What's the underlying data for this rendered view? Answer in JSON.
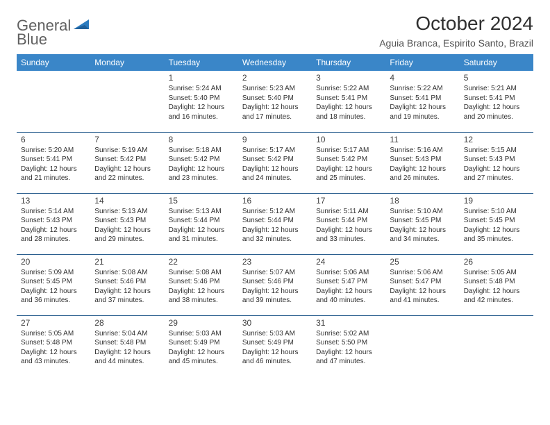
{
  "logo": {
    "part1": "General",
    "part2": "Blue"
  },
  "title": "October 2024",
  "location": "Aguia Branca, Espirito Santo, Brazil",
  "colors": {
    "header_bg": "#3a86c8",
    "header_fg": "#ffffff",
    "row_border": "#2b5f8f",
    "logo_gray": "#606060",
    "logo_blue": "#2b7bbf",
    "text": "#303030"
  },
  "weekdays": [
    "Sunday",
    "Monday",
    "Tuesday",
    "Wednesday",
    "Thursday",
    "Friday",
    "Saturday"
  ],
  "weeks": [
    [
      null,
      null,
      {
        "n": "1",
        "sr": "Sunrise: 5:24 AM",
        "ss": "Sunset: 5:40 PM",
        "d1": "Daylight: 12 hours",
        "d2": "and 16 minutes."
      },
      {
        "n": "2",
        "sr": "Sunrise: 5:23 AM",
        "ss": "Sunset: 5:40 PM",
        "d1": "Daylight: 12 hours",
        "d2": "and 17 minutes."
      },
      {
        "n": "3",
        "sr": "Sunrise: 5:22 AM",
        "ss": "Sunset: 5:41 PM",
        "d1": "Daylight: 12 hours",
        "d2": "and 18 minutes."
      },
      {
        "n": "4",
        "sr": "Sunrise: 5:22 AM",
        "ss": "Sunset: 5:41 PM",
        "d1": "Daylight: 12 hours",
        "d2": "and 19 minutes."
      },
      {
        "n": "5",
        "sr": "Sunrise: 5:21 AM",
        "ss": "Sunset: 5:41 PM",
        "d1": "Daylight: 12 hours",
        "d2": "and 20 minutes."
      }
    ],
    [
      {
        "n": "6",
        "sr": "Sunrise: 5:20 AM",
        "ss": "Sunset: 5:41 PM",
        "d1": "Daylight: 12 hours",
        "d2": "and 21 minutes."
      },
      {
        "n": "7",
        "sr": "Sunrise: 5:19 AM",
        "ss": "Sunset: 5:42 PM",
        "d1": "Daylight: 12 hours",
        "d2": "and 22 minutes."
      },
      {
        "n": "8",
        "sr": "Sunrise: 5:18 AM",
        "ss": "Sunset: 5:42 PM",
        "d1": "Daylight: 12 hours",
        "d2": "and 23 minutes."
      },
      {
        "n": "9",
        "sr": "Sunrise: 5:17 AM",
        "ss": "Sunset: 5:42 PM",
        "d1": "Daylight: 12 hours",
        "d2": "and 24 minutes."
      },
      {
        "n": "10",
        "sr": "Sunrise: 5:17 AM",
        "ss": "Sunset: 5:42 PM",
        "d1": "Daylight: 12 hours",
        "d2": "and 25 minutes."
      },
      {
        "n": "11",
        "sr": "Sunrise: 5:16 AM",
        "ss": "Sunset: 5:43 PM",
        "d1": "Daylight: 12 hours",
        "d2": "and 26 minutes."
      },
      {
        "n": "12",
        "sr": "Sunrise: 5:15 AM",
        "ss": "Sunset: 5:43 PM",
        "d1": "Daylight: 12 hours",
        "d2": "and 27 minutes."
      }
    ],
    [
      {
        "n": "13",
        "sr": "Sunrise: 5:14 AM",
        "ss": "Sunset: 5:43 PM",
        "d1": "Daylight: 12 hours",
        "d2": "and 28 minutes."
      },
      {
        "n": "14",
        "sr": "Sunrise: 5:13 AM",
        "ss": "Sunset: 5:43 PM",
        "d1": "Daylight: 12 hours",
        "d2": "and 29 minutes."
      },
      {
        "n": "15",
        "sr": "Sunrise: 5:13 AM",
        "ss": "Sunset: 5:44 PM",
        "d1": "Daylight: 12 hours",
        "d2": "and 31 minutes."
      },
      {
        "n": "16",
        "sr": "Sunrise: 5:12 AM",
        "ss": "Sunset: 5:44 PM",
        "d1": "Daylight: 12 hours",
        "d2": "and 32 minutes."
      },
      {
        "n": "17",
        "sr": "Sunrise: 5:11 AM",
        "ss": "Sunset: 5:44 PM",
        "d1": "Daylight: 12 hours",
        "d2": "and 33 minutes."
      },
      {
        "n": "18",
        "sr": "Sunrise: 5:10 AM",
        "ss": "Sunset: 5:45 PM",
        "d1": "Daylight: 12 hours",
        "d2": "and 34 minutes."
      },
      {
        "n": "19",
        "sr": "Sunrise: 5:10 AM",
        "ss": "Sunset: 5:45 PM",
        "d1": "Daylight: 12 hours",
        "d2": "and 35 minutes."
      }
    ],
    [
      {
        "n": "20",
        "sr": "Sunrise: 5:09 AM",
        "ss": "Sunset: 5:45 PM",
        "d1": "Daylight: 12 hours",
        "d2": "and 36 minutes."
      },
      {
        "n": "21",
        "sr": "Sunrise: 5:08 AM",
        "ss": "Sunset: 5:46 PM",
        "d1": "Daylight: 12 hours",
        "d2": "and 37 minutes."
      },
      {
        "n": "22",
        "sr": "Sunrise: 5:08 AM",
        "ss": "Sunset: 5:46 PM",
        "d1": "Daylight: 12 hours",
        "d2": "and 38 minutes."
      },
      {
        "n": "23",
        "sr": "Sunrise: 5:07 AM",
        "ss": "Sunset: 5:46 PM",
        "d1": "Daylight: 12 hours",
        "d2": "and 39 minutes."
      },
      {
        "n": "24",
        "sr": "Sunrise: 5:06 AM",
        "ss": "Sunset: 5:47 PM",
        "d1": "Daylight: 12 hours",
        "d2": "and 40 minutes."
      },
      {
        "n": "25",
        "sr": "Sunrise: 5:06 AM",
        "ss": "Sunset: 5:47 PM",
        "d1": "Daylight: 12 hours",
        "d2": "and 41 minutes."
      },
      {
        "n": "26",
        "sr": "Sunrise: 5:05 AM",
        "ss": "Sunset: 5:48 PM",
        "d1": "Daylight: 12 hours",
        "d2": "and 42 minutes."
      }
    ],
    [
      {
        "n": "27",
        "sr": "Sunrise: 5:05 AM",
        "ss": "Sunset: 5:48 PM",
        "d1": "Daylight: 12 hours",
        "d2": "and 43 minutes."
      },
      {
        "n": "28",
        "sr": "Sunrise: 5:04 AM",
        "ss": "Sunset: 5:48 PM",
        "d1": "Daylight: 12 hours",
        "d2": "and 44 minutes."
      },
      {
        "n": "29",
        "sr": "Sunrise: 5:03 AM",
        "ss": "Sunset: 5:49 PM",
        "d1": "Daylight: 12 hours",
        "d2": "and 45 minutes."
      },
      {
        "n": "30",
        "sr": "Sunrise: 5:03 AM",
        "ss": "Sunset: 5:49 PM",
        "d1": "Daylight: 12 hours",
        "d2": "and 46 minutes."
      },
      {
        "n": "31",
        "sr": "Sunrise: 5:02 AM",
        "ss": "Sunset: 5:50 PM",
        "d1": "Daylight: 12 hours",
        "d2": "and 47 minutes."
      },
      null,
      null
    ]
  ]
}
